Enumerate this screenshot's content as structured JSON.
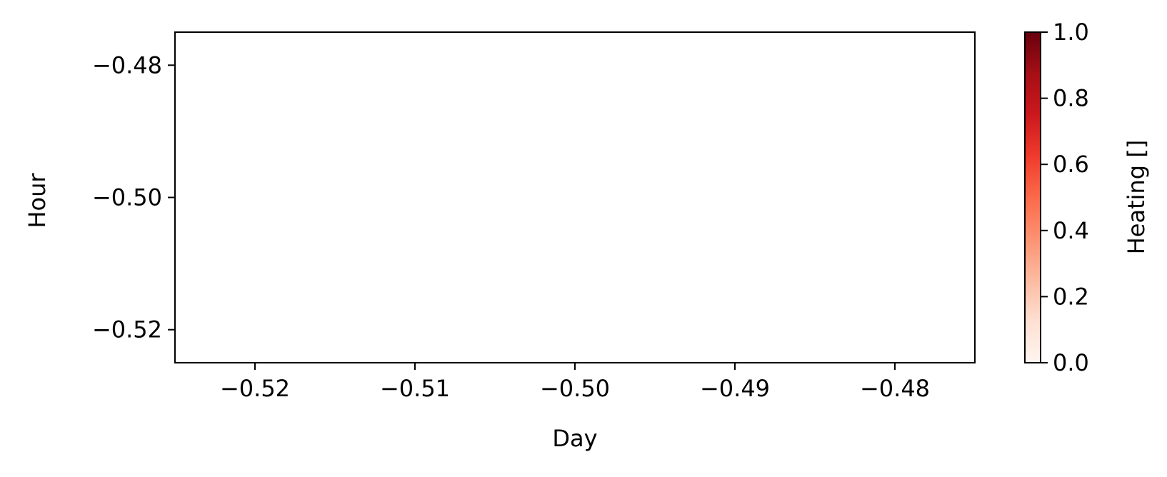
{
  "chart_data": {
    "type": "heatmap",
    "xlabel": "Day",
    "ylabel": "Hour",
    "xlim": [
      -0.525,
      -0.475
    ],
    "ylim": [
      -0.525,
      -0.475
    ],
    "x_ticks": [
      -0.52,
      -0.51,
      -0.5,
      -0.49,
      -0.48
    ],
    "x_tick_labels": [
      "−0.52",
      "−0.51",
      "−0.50",
      "−0.49",
      "−0.48"
    ],
    "y_ticks": [
      -0.48,
      -0.5,
      -0.52
    ],
    "y_tick_labels": [
      "−0.48",
      "−0.50",
      "−0.52"
    ],
    "values": [],
    "colorbar": {
      "label": "Heating []",
      "range": [
        0.0,
        1.0
      ],
      "ticks": [
        0.0,
        0.2,
        0.4,
        0.6,
        0.8,
        1.0
      ],
      "tick_labels": [
        "0.0",
        "0.2",
        "0.4",
        "0.6",
        "0.8",
        "1.0"
      ],
      "colormap": "Reds",
      "color_low": "#fff5f0",
      "color_high": "#67000d"
    },
    "grid": false
  }
}
